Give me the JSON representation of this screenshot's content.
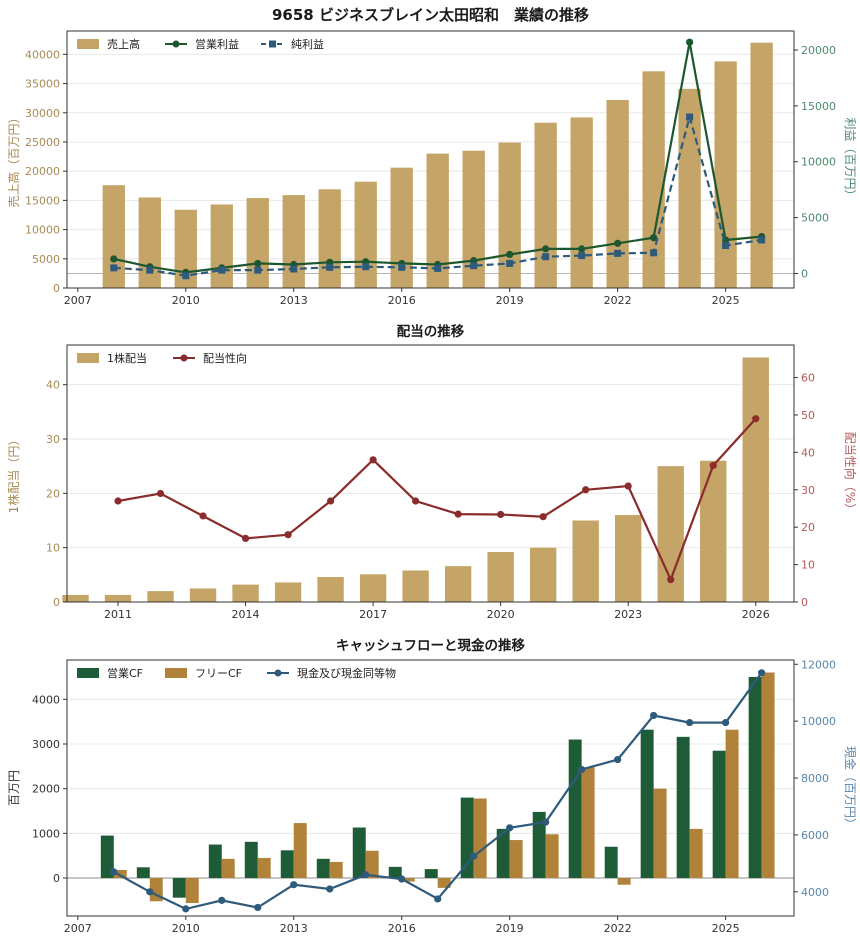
{
  "figure": {
    "background": "#ffffff"
  },
  "chart_data": [
    {
      "type": "bar",
      "title": "9658 ビジネスブレイン太田昭和　業績の推移",
      "ylabel": "売上高（百万円）",
      "y2label": "利益（百万円）",
      "xlim": [
        2006.7,
        2026.9
      ],
      "ylim": [
        0,
        44000
      ],
      "y2lim": [
        -1300,
        21700
      ],
      "xticks": [
        2007,
        2010,
        2013,
        2016,
        2019,
        2022,
        2025
      ],
      "yticks": [
        0,
        5000,
        10000,
        15000,
        20000,
        25000,
        30000,
        35000,
        40000
      ],
      "y2ticks": [
        0,
        5000,
        10000,
        15000,
        20000
      ],
      "grid": true,
      "legend": "top-left",
      "hline_y2": 0,
      "x": [
        2008,
        2009,
        2010,
        2011,
        2012,
        2013,
        2014,
        2015,
        2016,
        2017,
        2018,
        2019,
        2020,
        2021,
        2022,
        2023,
        2024,
        2025,
        2026
      ],
      "series": [
        {
          "name": "売上高",
          "kind": "bar",
          "axis": "y",
          "color": "#c4a467",
          "values": [
            17600,
            15500,
            13400,
            14300,
            15400,
            15900,
            16900,
            18200,
            20600,
            23000,
            23500,
            24900,
            28300,
            29200,
            32200,
            37100,
            34100,
            38800,
            42000
          ]
        },
        {
          "name": "営業利益",
          "kind": "line",
          "axis": "y2",
          "marker": "circle",
          "color": "#1d5730",
          "values": [
            1300,
            600,
            100,
            500,
            900,
            800,
            1000,
            1050,
            900,
            800,
            1150,
            1700,
            2200,
            2200,
            2700,
            3200,
            20700,
            3000,
            3300
          ]
        },
        {
          "name": "純利益",
          "kind": "line",
          "axis": "y2",
          "marker": "square",
          "dash": true,
          "color": "#2e5a7c",
          "values": [
            500,
            300,
            -200,
            300,
            300,
            400,
            550,
            600,
            550,
            450,
            700,
            900,
            1500,
            1600,
            1800,
            1850,
            14000,
            2500,
            3000
          ]
        }
      ]
    },
    {
      "type": "bar",
      "title": "配当の推移",
      "ylabel": "1株配当（円）",
      "y2label": "配当性向（%）",
      "xlim": [
        2009.8,
        2026.9
      ],
      "ylim": [
        0,
        47.3
      ],
      "y2lim": [
        0,
        68.7
      ],
      "xticks": [
        2011,
        2014,
        2017,
        2020,
        2023,
        2026
      ],
      "yticks": [
        0,
        10,
        20,
        30,
        40
      ],
      "y2ticks": [
        0,
        10,
        20,
        30,
        40,
        50,
        60
      ],
      "grid": true,
      "legend": "top-left",
      "x": [
        2010,
        2011,
        2012,
        2013,
        2014,
        2015,
        2016,
        2017,
        2018,
        2019,
        2020,
        2021,
        2022,
        2023,
        2024,
        2025,
        2026
      ],
      "series": [
        {
          "name": "1株配当",
          "kind": "bar",
          "axis": "y",
          "color": "#c4a467",
          "values": [
            1.3,
            1.3,
            2.0,
            2.5,
            3.2,
            3.6,
            4.6,
            5.1,
            5.8,
            6.6,
            9.2,
            10.0,
            15.0,
            16.0,
            25.0,
            26.0,
            45.0
          ]
        },
        {
          "name": "配当性向",
          "kind": "line",
          "axis": "y2",
          "marker": "circle",
          "color": "#8b2c2c",
          "values": [
            null,
            27.0,
            29.0,
            23.0,
            17.0,
            18.0,
            27.0,
            38.0,
            27.0,
            23.5,
            23.4,
            22.8,
            30.0,
            31.0,
            6.0,
            36.5,
            49.0
          ]
        }
      ]
    },
    {
      "type": "bar",
      "title": "キャッシュフローと現金の推移",
      "ylabel": "百万円",
      "y2label": "現金（百万円）",
      "xlim": [
        2006.7,
        2026.9
      ],
      "ylim": [
        -850,
        4880
      ],
      "y2lim": [
        3150,
        12150
      ],
      "xticks": [
        2007,
        2010,
        2013,
        2016,
        2019,
        2022,
        2025
      ],
      "yticks": [
        0,
        1000,
        2000,
        3000,
        4000
      ],
      "y2ticks": [
        4000,
        6000,
        8000,
        10000,
        12000
      ],
      "grid": true,
      "legend": "top-left",
      "hline_y": 0,
      "x": [
        2008,
        2009,
        2010,
        2011,
        2012,
        2013,
        2014,
        2015,
        2016,
        2017,
        2018,
        2019,
        2020,
        2021,
        2022,
        2023,
        2024,
        2025,
        2026
      ],
      "series": [
        {
          "name": "営業CF",
          "kind": "bar",
          "axis": "y",
          "color": "#1d5c36",
          "values": [
            950,
            240,
            -440,
            750,
            810,
            620,
            430,
            1130,
            250,
            200,
            1800,
            1100,
            1480,
            3100,
            700,
            3320,
            3160,
            2850,
            4500
          ]
        },
        {
          "name": "フリーCF",
          "kind": "bar",
          "axis": "y",
          "color": "#b0823a",
          "values": [
            180,
            -520,
            -560,
            430,
            450,
            1230,
            360,
            610,
            -80,
            -220,
            1780,
            850,
            980,
            2480,
            -150,
            2000,
            1100,
            3320,
            4600
          ]
        },
        {
          "name": "現金及び現金同等物",
          "kind": "line",
          "axis": "y2",
          "marker": "circle",
          "color": "#2e5a7c",
          "values": [
            4700,
            4000,
            3400,
            3700,
            3450,
            4250,
            4100,
            4600,
            4450,
            3750,
            5250,
            6250,
            6450,
            8300,
            8650,
            10200,
            9950,
            9950,
            11700
          ]
        }
      ]
    }
  ]
}
